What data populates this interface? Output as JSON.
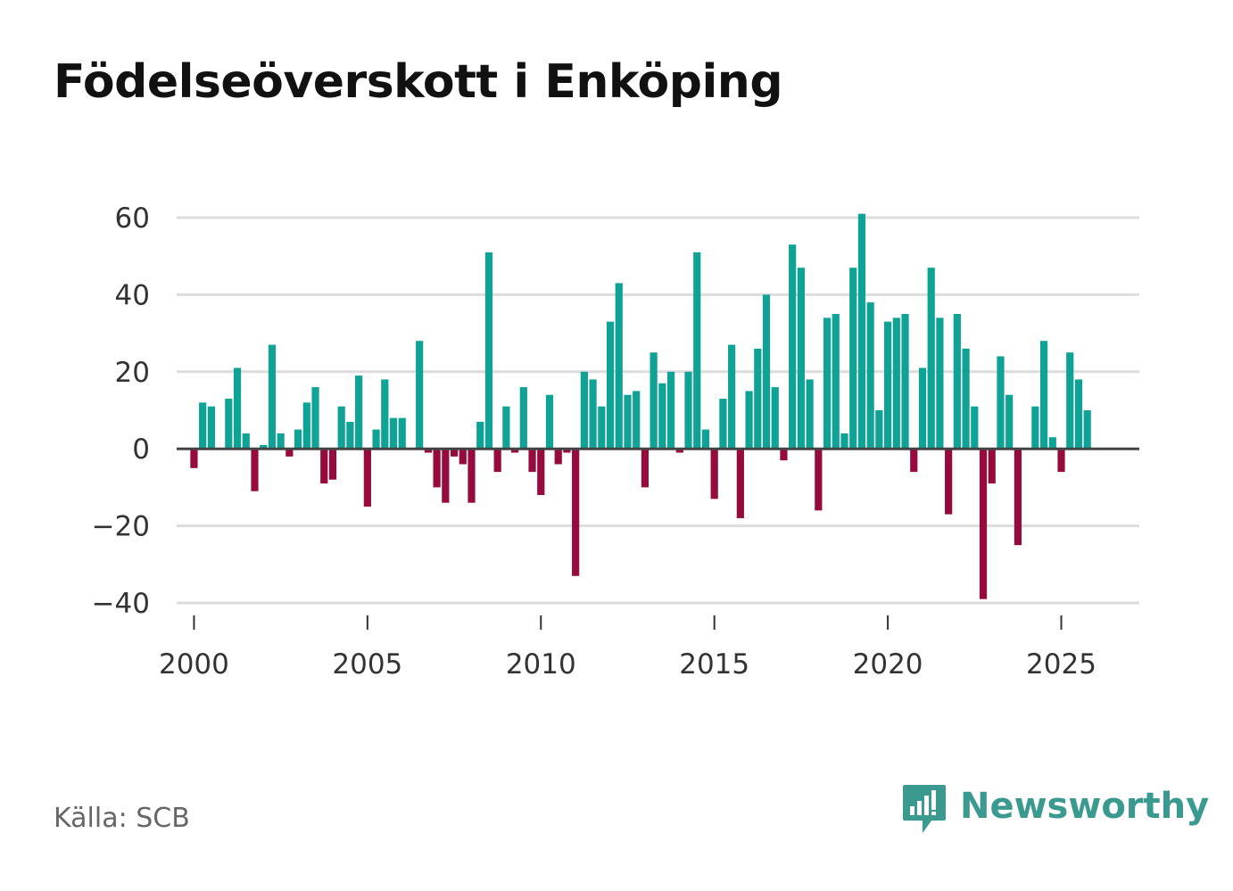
{
  "title": "Födelseöverskott i Enköping",
  "source": "Källa: SCB",
  "brand": "Newsworthy",
  "colors": {
    "positive": "#0fa396",
    "negative": "#960a3e",
    "grid": "#dcdcdc",
    "zero_line": "#444444",
    "brand": "#3a9a90"
  },
  "chart_data": {
    "type": "bar",
    "title": "Födelseöverskott i Enköping",
    "xlabel": "",
    "ylabel": "",
    "ylim": [
      -40,
      60
    ],
    "yticks": [
      60,
      40,
      20,
      0,
      -20,
      -40
    ],
    "ytick_labels": [
      "60",
      "40",
      "20",
      "0",
      "−20",
      "−40"
    ],
    "xlim": [
      1999.5,
      2027.25
    ],
    "xticks": [
      2000,
      2005,
      2010,
      2015,
      2020,
      2025
    ],
    "xtick_labels": [
      "2000",
      "2005",
      "2010",
      "2015",
      "2020",
      "2025"
    ],
    "frequency": "quarterly",
    "x_start": 2000.0,
    "x_step": 0.25,
    "values": [
      -5,
      12,
      11,
      0,
      13,
      21,
      4,
      -11,
      1,
      27,
      4,
      -2,
      5,
      12,
      16,
      -9,
      -8,
      11,
      7,
      19,
      -15,
      5,
      18,
      8,
      8,
      0,
      28,
      -1,
      -10,
      -14,
      -2,
      -4,
      -14,
      7,
      51,
      -6,
      11,
      -1,
      16,
      -6,
      -12,
      14,
      -4,
      -1,
      -33,
      20,
      18,
      11,
      33,
      43,
      14,
      15,
      -10,
      25,
      17,
      20,
      -1,
      20,
      51,
      5,
      -13,
      13,
      27,
      -18,
      15,
      26,
      40,
      16,
      -3,
      53,
      47,
      18,
      -16,
      34,
      35,
      4,
      47,
      61,
      38,
      10,
      33,
      34,
      35,
      -6,
      21,
      47,
      34,
      -17,
      35,
      26,
      11,
      -39,
      -9,
      24,
      14,
      -25,
      0,
      11,
      28,
      3,
      -6,
      25,
      18,
      10
    ]
  }
}
